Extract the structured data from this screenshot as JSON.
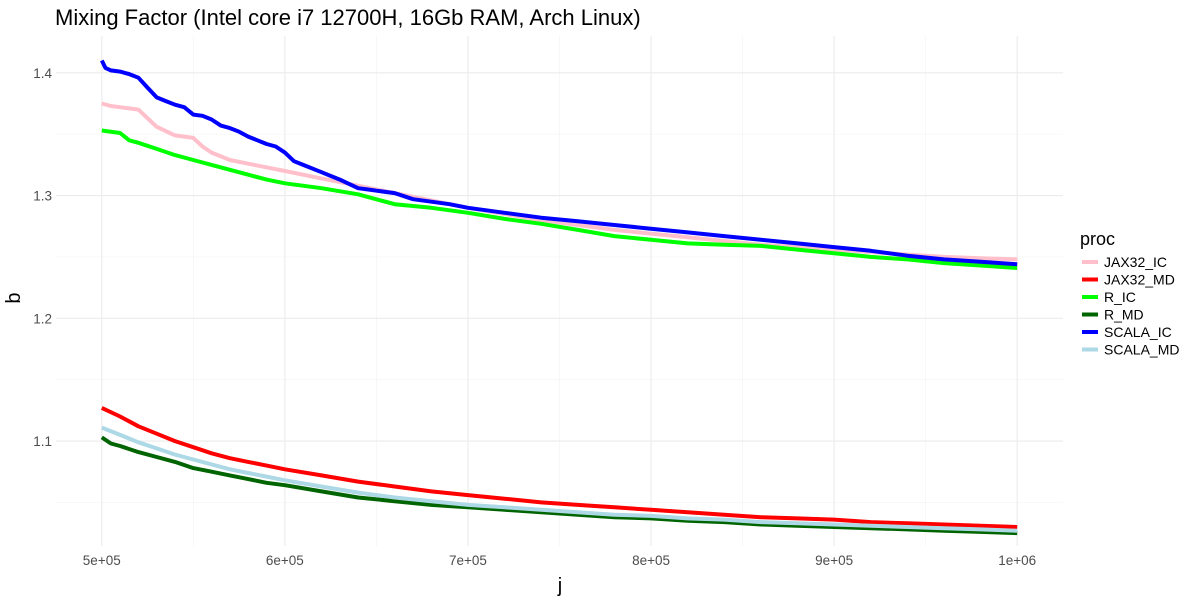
{
  "chart_data": {
    "type": "line",
    "title": "Mixing Factor (Intel core i7 12700H, 16Gb RAM, Arch Linux)",
    "xlabel": "j",
    "ylabel": "b",
    "xlim": [
      475000,
      1025000
    ],
    "ylim": [
      1.0145,
      1.43
    ],
    "x_ticks": [
      500000,
      600000,
      700000,
      800000,
      900000,
      1000000
    ],
    "x_tick_labels": [
      "5e+05",
      "6e+05",
      "7e+05",
      "8e+05",
      "9e+05",
      "1e+06"
    ],
    "y_ticks": [
      1.1,
      1.2,
      1.3,
      1.4
    ],
    "y_tick_labels": [
      "1.1",
      "1.2",
      "1.3",
      "1.4"
    ],
    "grid": true,
    "legend": {
      "title": "proc",
      "position": "right"
    },
    "series": [
      {
        "name": "JAX32_IC",
        "color": "#ffc0cb",
        "x": [
          500000,
          505000,
          510000,
          515000,
          520000,
          525000,
          530000,
          540000,
          550000,
          555000,
          560000,
          570000,
          580000,
          600000,
          620000,
          640000,
          660000,
          680000,
          700000,
          720000,
          740000,
          760000,
          780000,
          800000,
          820000,
          840000,
          860000,
          880000,
          900000,
          920000,
          940000,
          960000,
          980000,
          1000000
        ],
        "values": [
          1.375,
          1.373,
          1.372,
          1.371,
          1.37,
          1.363,
          1.356,
          1.349,
          1.347,
          1.34,
          1.335,
          1.329,
          1.326,
          1.32,
          1.314,
          1.308,
          1.302,
          1.296,
          1.29,
          1.285,
          1.28,
          1.276,
          1.272,
          1.269,
          1.266,
          1.263,
          1.26,
          1.258,
          1.256,
          1.254,
          1.252,
          1.25,
          1.249,
          1.248
        ]
      },
      {
        "name": "JAX32_MD",
        "color": "#ff0000",
        "x": [
          500000,
          510000,
          520000,
          530000,
          540000,
          550000,
          560000,
          570000,
          580000,
          590000,
          600000,
          620000,
          640000,
          660000,
          680000,
          700000,
          720000,
          740000,
          760000,
          780000,
          800000,
          820000,
          840000,
          860000,
          880000,
          900000,
          920000,
          940000,
          960000,
          980000,
          1000000
        ],
        "values": [
          1.127,
          1.12,
          1.112,
          1.106,
          1.1,
          1.095,
          1.09,
          1.086,
          1.083,
          1.08,
          1.077,
          1.072,
          1.067,
          1.063,
          1.059,
          1.056,
          1.053,
          1.05,
          1.048,
          1.046,
          1.044,
          1.042,
          1.04,
          1.038,
          1.037,
          1.036,
          1.034,
          1.033,
          1.032,
          1.031,
          1.03
        ]
      },
      {
        "name": "R_IC",
        "color": "#00ff00",
        "x": [
          500000,
          510000,
          515000,
          520000,
          530000,
          540000,
          550000,
          560000,
          570000,
          580000,
          590000,
          600000,
          620000,
          640000,
          660000,
          680000,
          700000,
          720000,
          740000,
          760000,
          780000,
          800000,
          820000,
          840000,
          860000,
          880000,
          900000,
          920000,
          940000,
          960000,
          980000,
          1000000
        ],
        "values": [
          1.353,
          1.351,
          1.345,
          1.343,
          1.338,
          1.333,
          1.329,
          1.325,
          1.321,
          1.317,
          1.313,
          1.31,
          1.306,
          1.301,
          1.293,
          1.29,
          1.286,
          1.281,
          1.277,
          1.272,
          1.267,
          1.264,
          1.261,
          1.26,
          1.259,
          1.256,
          1.253,
          1.25,
          1.248,
          1.245,
          1.243,
          1.241
        ]
      },
      {
        "name": "R_MD",
        "color": "#006400",
        "x": [
          500000,
          505000,
          510000,
          520000,
          530000,
          540000,
          550000,
          560000,
          570000,
          580000,
          590000,
          600000,
          620000,
          640000,
          660000,
          680000,
          700000,
          720000,
          740000,
          760000,
          780000,
          800000,
          820000,
          840000,
          860000,
          880000,
          900000,
          920000,
          940000,
          960000,
          980000,
          1000000
        ],
        "values": [
          1.103,
          1.098,
          1.096,
          1.091,
          1.087,
          1.083,
          1.078,
          1.075,
          1.072,
          1.069,
          1.066,
          1.064,
          1.059,
          1.054,
          1.051,
          1.048,
          1.046,
          1.044,
          1.042,
          1.04,
          1.038,
          1.037,
          1.035,
          1.034,
          1.032,
          1.031,
          1.03,
          1.029,
          1.028,
          1.027,
          1.026,
          1.025
        ]
      },
      {
        "name": "SCALA_IC",
        "color": "#0000ff",
        "x": [
          500000,
          502000,
          505000,
          510000,
          515000,
          520000,
          525000,
          530000,
          535000,
          540000,
          545000,
          550000,
          555000,
          560000,
          565000,
          570000,
          575000,
          580000,
          585000,
          590000,
          595000,
          600000,
          605000,
          610000,
          620000,
          630000,
          640000,
          645000,
          650000,
          660000,
          670000,
          680000,
          690000,
          700000,
          710000,
          720000,
          740000,
          760000,
          780000,
          800000,
          820000,
          840000,
          860000,
          880000,
          900000,
          920000,
          940000,
          960000,
          980000,
          1000000
        ],
        "values": [
          1.41,
          1.404,
          1.402,
          1.401,
          1.399,
          1.396,
          1.388,
          1.38,
          1.377,
          1.374,
          1.372,
          1.366,
          1.365,
          1.362,
          1.357,
          1.355,
          1.352,
          1.348,
          1.345,
          1.342,
          1.34,
          1.335,
          1.328,
          1.325,
          1.319,
          1.313,
          1.306,
          1.305,
          1.304,
          1.302,
          1.297,
          1.295,
          1.293,
          1.29,
          1.288,
          1.286,
          1.282,
          1.279,
          1.276,
          1.273,
          1.27,
          1.267,
          1.264,
          1.261,
          1.258,
          1.255,
          1.251,
          1.248,
          1.246,
          1.244
        ]
      },
      {
        "name": "SCALA_MD",
        "color": "#add8e6",
        "x": [
          500000,
          510000,
          520000,
          530000,
          540000,
          550000,
          560000,
          570000,
          580000,
          590000,
          600000,
          620000,
          640000,
          660000,
          680000,
          700000,
          720000,
          740000,
          760000,
          780000,
          800000,
          820000,
          840000,
          860000,
          880000,
          900000,
          920000,
          940000,
          960000,
          980000,
          1000000
        ],
        "values": [
          1.111,
          1.105,
          1.099,
          1.094,
          1.089,
          1.085,
          1.081,
          1.077,
          1.074,
          1.071,
          1.068,
          1.063,
          1.058,
          1.054,
          1.051,
          1.048,
          1.046,
          1.044,
          1.042,
          1.04,
          1.039,
          1.037,
          1.036,
          1.034,
          1.033,
          1.032,
          1.031,
          1.03,
          1.029,
          1.028,
          1.027
        ]
      }
    ]
  }
}
